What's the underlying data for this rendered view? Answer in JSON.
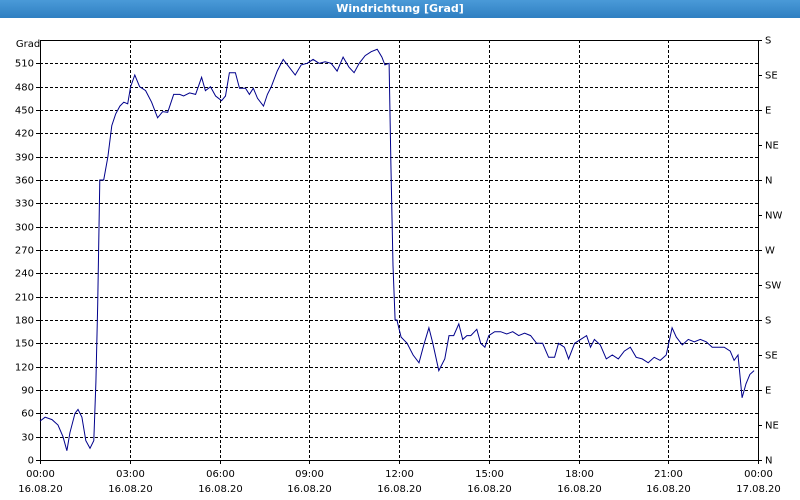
{
  "chart_data": {
    "type": "line",
    "title": "Windrichtung [Grad]",
    "y_label": "Grad",
    "x": [
      0,
      0.17,
      0.4,
      0.6,
      0.77,
      0.9,
      1,
      1.17,
      1.27,
      1.4,
      1.53,
      1.67,
      1.8,
      1.87,
      1.93,
      2,
      2.13,
      2.27,
      2.4,
      2.53,
      2.67,
      2.8,
      2.93,
      3.03,
      3.17,
      3.33,
      3.53,
      3.73,
      3.93,
      4.1,
      4.27,
      4.47,
      4.67,
      4.8,
      5,
      5.2,
      5.4,
      5.53,
      5.7,
      5.87,
      6.07,
      6.2,
      6.33,
      6.53,
      6.67,
      6.87,
      7,
      7.13,
      7.27,
      7.47,
      7.6,
      7.73,
      7.93,
      8.13,
      8.33,
      8.53,
      8.73,
      8.93,
      9.13,
      9.33,
      9.53,
      9.73,
      9.93,
      10.13,
      10.33,
      10.5,
      10.67,
      10.87,
      11.07,
      11.27,
      11.43,
      11.53,
      11.67,
      11.73,
      11.8,
      11.87,
      11.93,
      12.07,
      12.27,
      12.47,
      12.67,
      12.83,
      13,
      13.13,
      13.33,
      13.53,
      13.67,
      13.83,
      14,
      14.13,
      14.27,
      14.4,
      14.6,
      14.73,
      14.87,
      15,
      15.2,
      15.4,
      15.6,
      15.8,
      16,
      16.2,
      16.4,
      16.6,
      16.8,
      17,
      17.2,
      17.33,
      17.53,
      17.67,
      17.87,
      18.07,
      18.27,
      18.4,
      18.53,
      18.73,
      18.93,
      19.13,
      19.33,
      19.53,
      19.73,
      19.93,
      20.13,
      20.33,
      20.53,
      20.73,
      20.93,
      21.13,
      21.27,
      21.47,
      21.67,
      21.87,
      22.07,
      22.27,
      22.47,
      22.67,
      22.87,
      23.07,
      23.2,
      23.33,
      23.47,
      23.6,
      23.73,
      23.87
    ],
    "series": [
      {
        "name": "Windrichtung",
        "color": "#00008b",
        "values": [
          50,
          55,
          52,
          45,
          30,
          12,
          35,
          60,
          65,
          55,
          25,
          15,
          25,
          100,
          200,
          360,
          360,
          390,
          430,
          445,
          455,
          460,
          458,
          480,
          495,
          480,
          475,
          460,
          440,
          448,
          447,
          470,
          470,
          468,
          472,
          470,
          492,
          475,
          480,
          468,
          462,
          468,
          498,
          498,
          478,
          478,
          470,
          478,
          465,
          455,
          470,
          480,
          500,
          515,
          505,
          495,
          508,
          510,
          515,
          510,
          512,
          510,
          500,
          518,
          505,
          498,
          510,
          520,
          525,
          528,
          518,
          508,
          510,
          380,
          250,
          180,
          180,
          158,
          150,
          135,
          125,
          148,
          170,
          150,
          115,
          130,
          160,
          160,
          175,
          155,
          160,
          160,
          168,
          150,
          145,
          160,
          165,
          165,
          162,
          165,
          160,
          163,
          160,
          150,
          150,
          132,
          132,
          150,
          145,
          130,
          150,
          155,
          160,
          145,
          155,
          148,
          130,
          135,
          130,
          140,
          145,
          132,
          130,
          125,
          132,
          128,
          135,
          170,
          158,
          148,
          155,
          152,
          155,
          152,
          145,
          145,
          145,
          140,
          128,
          135,
          80,
          98,
          110,
          115
        ]
      }
    ],
    "xlim": [
      0,
      24
    ],
    "xticks": [
      {
        "value": 0,
        "label": "00:00"
      },
      {
        "value": 3,
        "label": "03:00"
      },
      {
        "value": 6,
        "label": "06:00"
      },
      {
        "value": 9,
        "label": "09:00"
      },
      {
        "value": 12,
        "label": "12:00"
      },
      {
        "value": 15,
        "label": "15:00"
      },
      {
        "value": 18,
        "label": "18:00"
      },
      {
        "value": 21,
        "label": "21:00"
      },
      {
        "value": 24,
        "label": "00:00"
      }
    ],
    "xtick_dates": [
      "16.08.20",
      "16.08.20",
      "16.08.20",
      "16.08.20",
      "16.08.20",
      "16.08.20",
      "16.08.20",
      "16.08.20",
      "17.08.20"
    ],
    "ylim": [
      0,
      540
    ],
    "yticks": [
      0,
      30,
      60,
      90,
      120,
      150,
      180,
      210,
      240,
      270,
      300,
      330,
      360,
      390,
      420,
      450,
      480,
      510
    ],
    "y2lim": [
      0,
      540
    ],
    "y2ticks": [
      {
        "value": 0,
        "label": "N"
      },
      {
        "value": 45,
        "label": "NE"
      },
      {
        "value": 90,
        "label": "E"
      },
      {
        "value": 135,
        "label": "SE"
      },
      {
        "value": 180,
        "label": "S"
      },
      {
        "value": 225,
        "label": "SW"
      },
      {
        "value": 270,
        "label": "W"
      },
      {
        "value": 315,
        "label": "NW"
      },
      {
        "value": 360,
        "label": "N"
      },
      {
        "value": 405,
        "label": "NE"
      },
      {
        "value": 450,
        "label": "E"
      },
      {
        "value": 495,
        "label": "SE"
      },
      {
        "value": 540,
        "label": "S"
      }
    ],
    "grid": true
  }
}
